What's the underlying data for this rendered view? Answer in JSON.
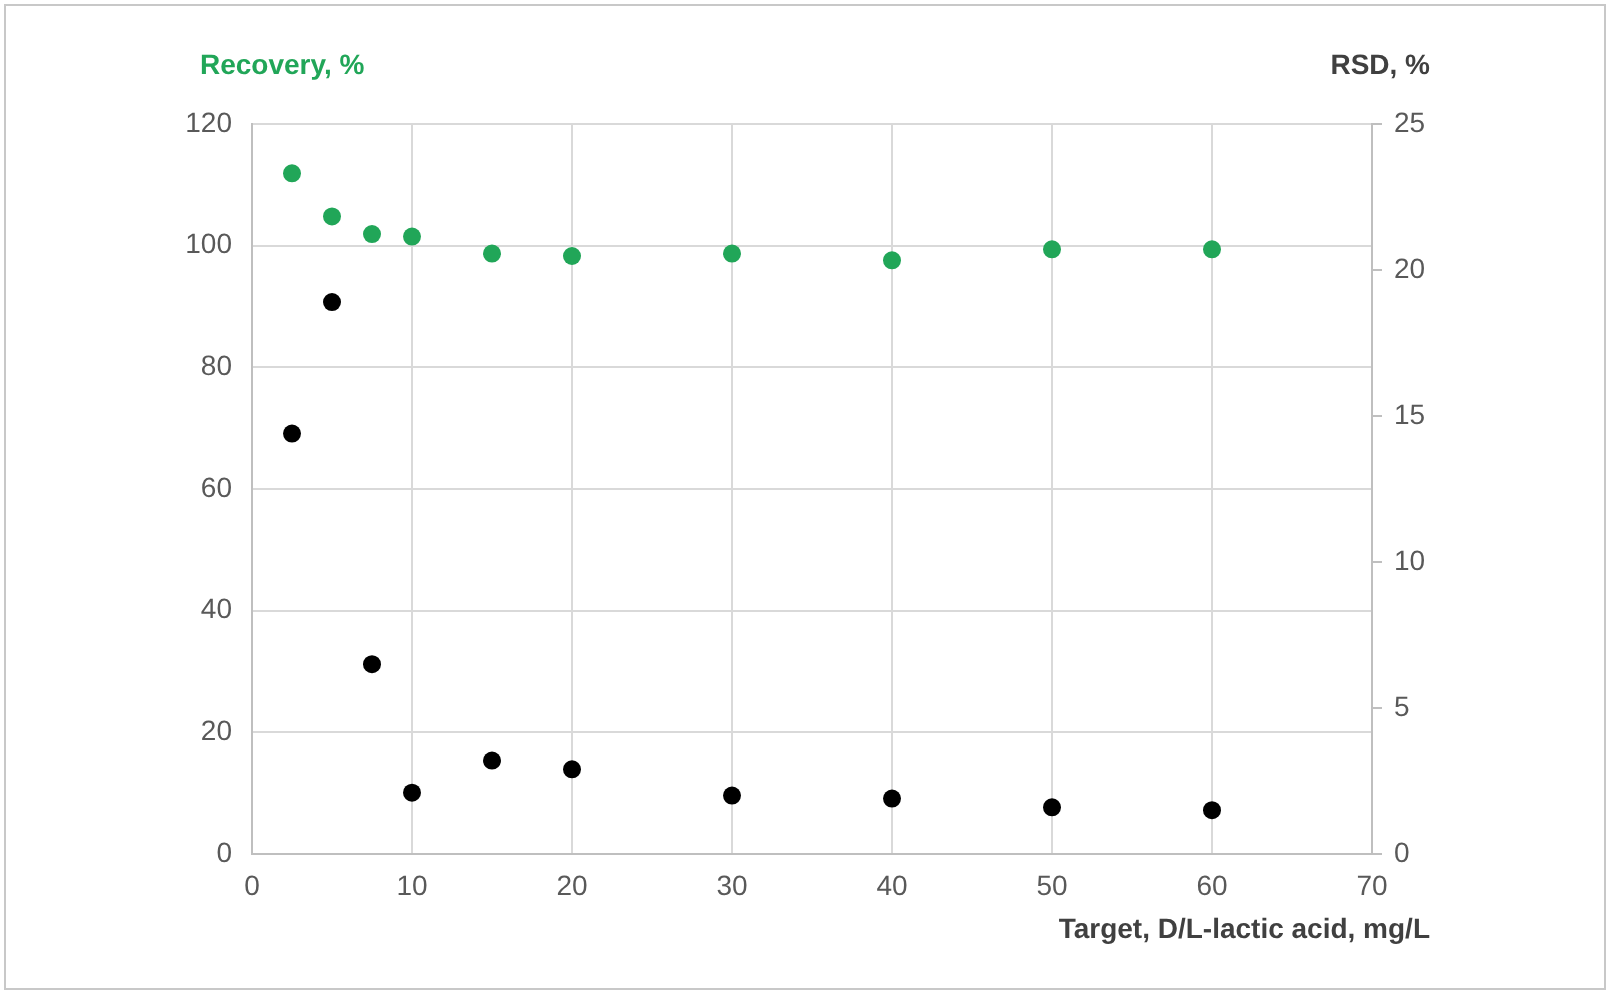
{
  "chart_data": {
    "type": "scatter",
    "xlabel": "Target, D/L-lactic acid, mg/L",
    "ylabel": "Recovery, %",
    "y2label": "RSD, %",
    "x": [
      2.5,
      5,
      7.5,
      10,
      15,
      20,
      30,
      40,
      50,
      60
    ],
    "series": [
      {
        "color": "#21a658",
        "values": [
          111.9,
          104.8,
          101.9,
          101.5,
          98.7,
          98.3,
          98.7,
          97.6,
          99.4,
          99.4
        ]
      },
      {
        "color": "#000000",
        "axis": "y2",
        "values": [
          14.4,
          18.9,
          6.5,
          2.1,
          3.2,
          2.9,
          2.0,
          1.9,
          1.6,
          1.5
        ]
      }
    ],
    "xlim": [
      0,
      70
    ],
    "xticks": [
      0,
      10,
      20,
      30,
      40,
      50,
      60,
      70
    ],
    "ylim": [
      0,
      120
    ],
    "yticks": [
      0,
      20,
      40,
      60,
      80,
      100,
      120
    ],
    "y2lim": [
      0,
      25
    ],
    "y2ticks": [
      0,
      5,
      10,
      15,
      20,
      25
    ],
    "grid": true,
    "marker": "circle",
    "legend": false
  }
}
